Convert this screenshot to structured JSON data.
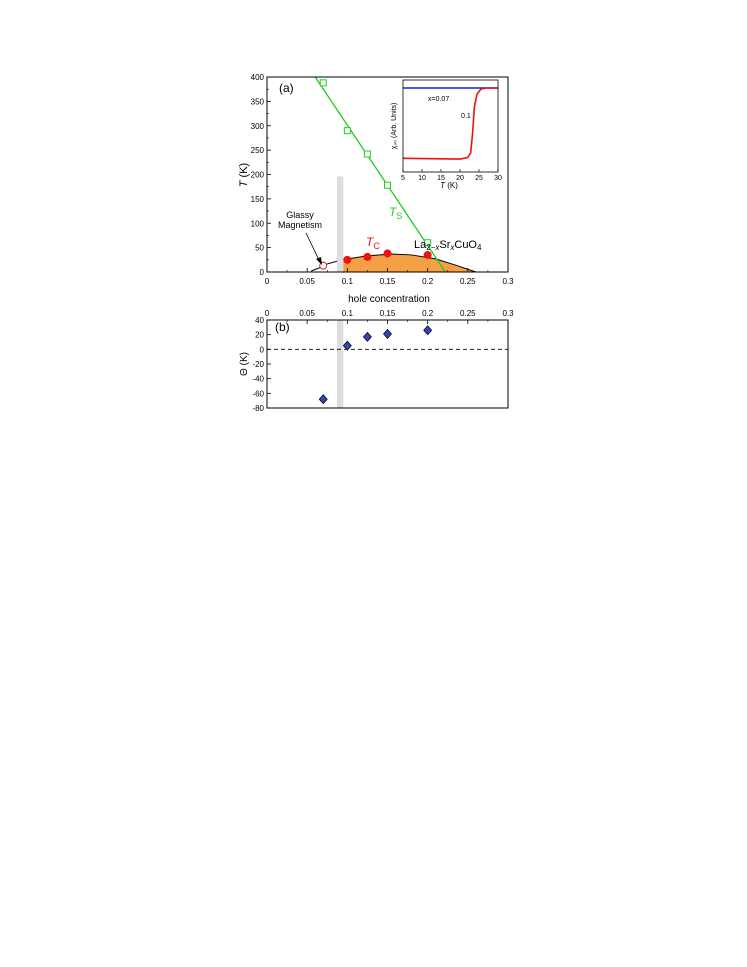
{
  "colors": {
    "ts": "#22cc22",
    "tc": "#ee1111",
    "dome": "#f5a045",
    "glassy": "#cc2222",
    "theta": "#3344bb",
    "band": "#dddddd",
    "inset_blue": "#1122dd",
    "inset_red": "#ee1111"
  },
  "chart_data": [
    {
      "type": "scatter",
      "panel_label": "(a)",
      "xlabel": "hole concentration",
      "ylabel": "T (K)",
      "xlim": [
        0,
        0.3
      ],
      "ylim": [
        0,
        400
      ],
      "xticks": [
        "0",
        "0.05",
        "0.1",
        "0.15",
        "0.2",
        "0.25",
        "0.3"
      ],
      "yticks": [
        "0",
        "50",
        "100",
        "150",
        "200",
        "250",
        "300",
        "350",
        "400"
      ],
      "shaded_band_x": [
        0.087,
        0.095
      ],
      "series": [
        {
          "name": "TS",
          "marker": "open-square",
          "fit_line": [
            [
              0.06,
              400
            ],
            [
              0.222,
              0
            ]
          ],
          "x": [
            0.07,
            0.1,
            0.125,
            0.15,
            0.2
          ],
          "y": [
            388,
            290,
            242,
            178,
            60
          ]
        },
        {
          "name": "TC",
          "marker": "filled-circle",
          "x": [
            0.1,
            0.125,
            0.15,
            0.2
          ],
          "y": [
            25,
            31,
            38,
            35
          ]
        },
        {
          "name": "Glassy Magnetism",
          "marker": "open-circle",
          "x": [
            0.07
          ],
          "y": [
            13
          ]
        }
      ],
      "sc_dome": {
        "x": [
          0.055,
          0.08,
          0.1,
          0.125,
          0.155,
          0.18,
          0.21,
          0.235,
          0.26
        ],
        "y": [
          0,
          15,
          27,
          33,
          37,
          35,
          27,
          14,
          0
        ]
      },
      "annotations": {
        "panel": "(a)",
        "ts_label": "T",
        "ts_sub": "S",
        "tc_label": "T",
        "tc_sub": "C",
        "glassy_line1": "Glassy",
        "glassy_line2": "Magnetism",
        "compound_a": "La",
        "compound_b": "2−",
        "compound_c": "x",
        "compound_d": "Sr",
        "compound_e": "x",
        "compound_f": "CuO",
        "compound_g": "4"
      },
      "ylabel_t": "T",
      "ylabel_k": "(K)"
    },
    {
      "type": "line",
      "inset": true,
      "xlabel_t": "T",
      "xlabel_k": "(K)",
      "ylabel": "χ₃₀ (Arb. Units)",
      "xlim": [
        5,
        30
      ],
      "xticks": [
        "5",
        "10",
        "15",
        "20",
        "25",
        "30"
      ],
      "series": [
        {
          "name": "x=0.07",
          "x": [
            5,
            30
          ],
          "y": [
            1.0,
            1.0
          ]
        },
        {
          "name": "0.1",
          "x": [
            5,
            20,
            22,
            22.8,
            23.3,
            23.8,
            24.5,
            25.5,
            27,
            30
          ],
          "y": [
            0.05,
            0.04,
            0.06,
            0.12,
            0.38,
            0.75,
            0.92,
            0.985,
            1.0,
            1.0
          ]
        }
      ]
    },
    {
      "type": "scatter",
      "panel_label": "(b)",
      "ylabel": "Θ (K)",
      "xlim": [
        0,
        0.3
      ],
      "ylim": [
        -80,
        40
      ],
      "xticks": [
        "0",
        "0.05",
        "0.1",
        "0.15",
        "0.2",
        "0.25",
        "0.3"
      ],
      "yticks": [
        "40",
        "20",
        "0",
        "-20",
        "-40",
        "-60",
        "-80"
      ],
      "shaded_band_x": [
        0.087,
        0.095
      ],
      "zero_line": "dashed",
      "series": [
        {
          "name": "Θ",
          "marker": "filled-diamond",
          "x": [
            0.07,
            0.1,
            0.125,
            0.15,
            0.2
          ],
          "y": [
            -68,
            5,
            17,
            21,
            26
          ]
        }
      ]
    }
  ]
}
